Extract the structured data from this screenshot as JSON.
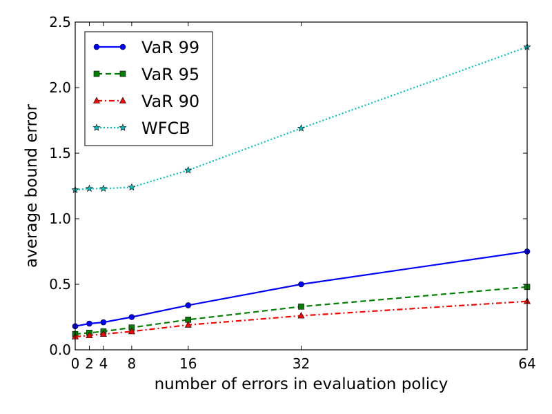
{
  "chart_data": {
    "type": "line",
    "xlabel": "number of errors in evaluation policy",
    "ylabel": "average bound error",
    "xlim": [
      0,
      64
    ],
    "ylim": [
      0.0,
      2.5
    ],
    "xticks": [
      0,
      2,
      4,
      8,
      16,
      32,
      64
    ],
    "yticks": [
      0.0,
      0.5,
      1.0,
      1.5,
      2.0,
      2.5
    ],
    "ytick_labels": [
      "0.0",
      "0.5",
      "1.0",
      "1.5",
      "2.0",
      "2.5"
    ],
    "grid": false,
    "legend_position": "upper-left",
    "x": [
      0,
      2,
      4,
      8,
      16,
      32,
      64
    ],
    "series": [
      {
        "name": "VaR 99",
        "color": "#0000ff",
        "linestyle": "solid",
        "marker": "circle",
        "values": [
          0.18,
          0.2,
          0.21,
          0.25,
          0.34,
          0.5,
          0.75
        ]
      },
      {
        "name": "VaR 95",
        "color": "#008000",
        "linestyle": "dashed",
        "marker": "square",
        "values": [
          0.12,
          0.13,
          0.14,
          0.17,
          0.23,
          0.33,
          0.48
        ]
      },
      {
        "name": "VaR 90",
        "color": "#ff0000",
        "linestyle": "dashdot",
        "marker": "triangle",
        "values": [
          0.1,
          0.11,
          0.12,
          0.14,
          0.19,
          0.26,
          0.37
        ]
      },
      {
        "name": "WFCB",
        "color": "#00bfbf",
        "linestyle": "dotted",
        "marker": "star",
        "values": [
          1.22,
          1.23,
          1.23,
          1.24,
          1.37,
          1.69,
          2.31
        ]
      }
    ]
  }
}
